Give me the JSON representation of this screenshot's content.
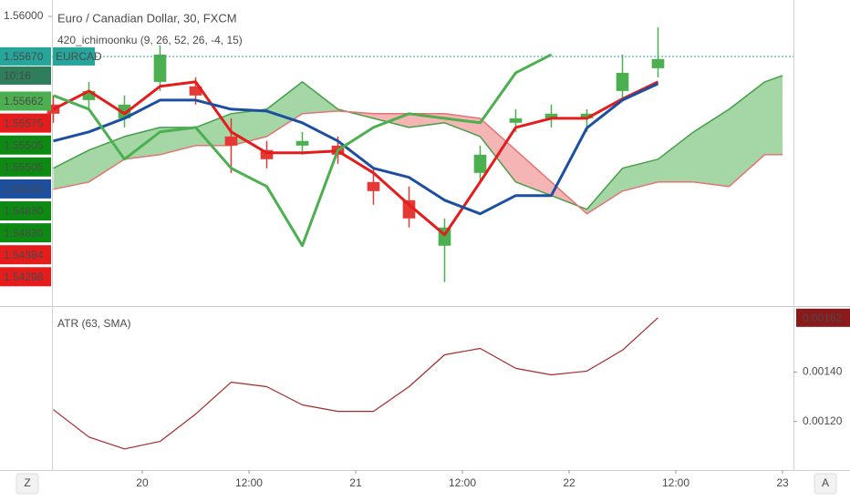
{
  "chart_data": [
    {
      "type": "candlestick",
      "title": "Euro / Canadian Dollar, 30, FXCM",
      "subtitle": "420_ichimoonku (9, 26, 52, 26, -4, 15)",
      "x": [
        -10,
        -6,
        -2,
        2,
        6,
        10,
        14,
        18,
        22,
        26,
        30,
        34,
        38,
        42,
        46,
        50,
        54,
        58,
        62,
        66,
        70,
        72
      ],
      "open": [
        1.55273,
        1.5531,
        1.5516,
        1.5546,
        1.55423,
        1.5501,
        1.54898,
        1.54935,
        1.54935,
        1.54635,
        1.54485,
        1.5411,
        1.5471,
        1.55123,
        1.5516,
        1.5516,
        1.55385,
        1.55573,
        null,
        null,
        null,
        null
      ],
      "high": [
        1.55348,
        1.5546,
        1.55348,
        1.5576,
        1.55498,
        1.5516,
        1.54973,
        1.55048,
        1.5501,
        1.54748,
        1.54598,
        1.54335,
        1.54935,
        1.55235,
        1.55273,
        1.55235,
        1.55685,
        1.5591,
        null,
        null,
        null,
        null
      ],
      "low": [
        1.55123,
        1.55235,
        1.55085,
        1.55385,
        1.55273,
        1.5471,
        1.54748,
        1.5486,
        1.54785,
        1.54448,
        1.5426,
        1.5381,
        1.54635,
        1.55048,
        1.55085,
        1.55048,
        1.5531,
        1.55498,
        null,
        null,
        null,
        null
      ],
      "close": [
        1.55198,
        1.55385,
        1.55273,
        1.55685,
        1.55348,
        1.54935,
        1.54823,
        1.54973,
        1.5486,
        1.5456,
        1.54335,
        1.5426,
        1.5486,
        1.5516,
        1.55198,
        1.55198,
        1.55535,
        1.55648,
        null,
        null,
        null,
        null
      ],
      "up_color": "#4caf50",
      "down_color": "#e53935",
      "series": [
        {
          "color": "#e51c1c",
          "width": 3,
          "values": [
            1.55235,
            1.55385,
            1.55198,
            1.55423,
            1.5546,
            1.55048,
            1.54875,
            1.54875,
            1.5489,
            1.5471,
            1.54448,
            1.542,
            1.54635,
            1.55085,
            1.5516,
            1.5516,
            1.5532,
            1.5546,
            null,
            null,
            null,
            null
          ]
        },
        {
          "color": "#1c4fa0",
          "width": 3,
          "values": [
            1.54973,
            1.55048,
            1.5516,
            1.5531,
            1.5531,
            1.55235,
            1.5522,
            1.55123,
            1.54973,
            1.54748,
            1.54673,
            1.54485,
            1.54373,
            1.54523,
            1.54523,
            1.5508,
            1.5531,
            1.55445,
            null,
            null,
            null,
            null
          ]
        },
        {
          "color": "#4caf50",
          "width": 3,
          "values": [
            1.55348,
            1.55235,
            1.54823,
            1.55048,
            1.55085,
            1.54748,
            1.54598,
            1.5411,
            1.54898,
            1.55085,
            1.55198,
            1.5516,
            1.55123,
            1.55535,
            1.55685,
            null,
            null,
            null,
            null,
            null,
            null,
            null
          ]
        },
        {
          "color": "#43a047",
          "width": 1.5,
          "values": [
            1.54748,
            1.54898,
            1.5501,
            1.55085,
            1.55085,
            1.55198,
            1.55235,
            1.5546,
            1.55235,
            1.5516,
            1.55085,
            1.55123,
            1.5501,
            1.54635,
            1.54523,
            1.5441,
            1.54748,
            1.54823,
            1.55048,
            1.55235,
            1.5546,
            1.55513
          ]
        },
        {
          "color": "#e57373",
          "width": 1.5,
          "values": [
            1.54575,
            1.54635,
            1.54823,
            1.5486,
            1.54935,
            1.54935,
            1.5501,
            1.55198,
            1.5522,
            1.55198,
            1.55198,
            1.55198,
            1.5516,
            1.54898,
            1.54635,
            1.54373,
            1.5456,
            1.54635,
            1.54635,
            1.54598,
            1.5486,
            1.5486
          ]
        }
      ],
      "cloud_up_color": "#8fcc8f",
      "cloud_down_color": "#f3a3a3",
      "xlim": [
        -10.15,
        73.23
      ],
      "xticks": [
        {
          "value": 0,
          "label": "20"
        },
        {
          "value": 12,
          "label": "12:00"
        },
        {
          "value": 24,
          "label": "21"
        },
        {
          "value": 36,
          "label": "12:00"
        },
        {
          "value": 48,
          "label": "22"
        },
        {
          "value": 60,
          "label": "12:00"
        },
        {
          "value": 72,
          "label": "23"
        }
      ],
      "ylim": [
        1.5362,
        1.56135
      ],
      "yticks": [
        {
          "value": 1.56,
          "label": "1.56000"
        }
      ],
      "last_price": {
        "value": 1.5567,
        "label": "1.55670",
        "color": "#26a69a"
      },
      "grid": false
    },
    {
      "type": "line",
      "title": "ATR (63, SMA)",
      "x": [
        -10,
        -6,
        -2,
        2,
        6,
        10,
        14,
        18,
        22,
        26,
        30,
        34,
        38,
        42,
        46,
        50,
        54,
        58
      ],
      "series": [
        {
          "color": "#a52a2a",
          "values": [
            0.001248,
            0.001137,
            0.001089,
            0.001119,
            0.00123,
            0.001359,
            0.001341,
            0.001267,
            0.001241,
            0.001241,
            0.001341,
            0.00147,
            0.001496,
            0.001415,
            0.001389,
            0.001404,
            0.001489,
            0.00162
          ]
        }
      ],
      "xlim": [
        -10.15,
        73.23
      ],
      "ylim": [
        0.001007,
        0.00166
      ],
      "yticks": [
        {
          "value": 0.0014,
          "label": "0.00140"
        },
        {
          "value": 0.0012,
          "label": "0.00120"
        }
      ],
      "grid": false
    }
  ],
  "symbol": "EURCAD",
  "countdown": "10:16",
  "price_labels": [
    {
      "label": "1.55662",
      "color": "#4caf50"
    },
    {
      "label": "1.55575",
      "color": "#e51c1c"
    },
    {
      "label": "1.55505",
      "color": "#0d8a12"
    },
    {
      "label": "1.55505",
      "color": "#0d8a12"
    },
    {
      "label": "1.55435",
      "color": "#1c4fa0"
    },
    {
      "label": "1.54830",
      "color": "#0d8a12"
    },
    {
      "label": "1.54830",
      "color": "#0d8a12"
    },
    {
      "label": "1.54384",
      "color": "#e51c1c"
    },
    {
      "label": "1.54298",
      "color": "#e51c1c"
    }
  ],
  "buttons": [
    "Z",
    "A"
  ]
}
